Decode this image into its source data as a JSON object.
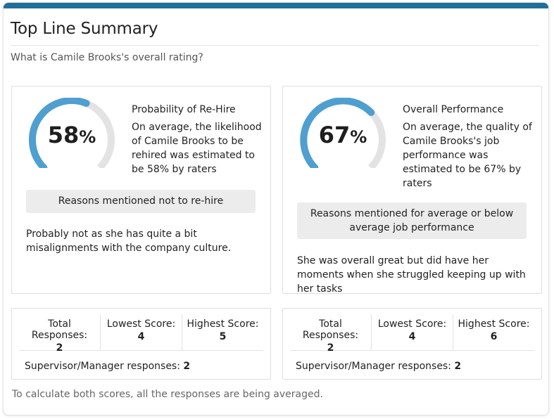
{
  "header": {
    "title": "Top Line Summary",
    "question": "What is Camile Brooks's overall rating?"
  },
  "colors": {
    "accent_bar": "#1f6f9a",
    "gauge_fill": "#4f9fd0",
    "gauge_track": "#e3e3e3"
  },
  "rehire": {
    "percent": 58,
    "value_number": "58",
    "value_unit": "%",
    "title": "Probability of Re-Hire",
    "description": "On average, the likelihood of Camile Brooks to be rehired was estimated to be 58% by raters",
    "reasons_heading": "Reasons mentioned not to re-hire",
    "reasons_text": "Probably not as she has quite a bit misalignments with the company culture.",
    "stats": {
      "total_label": "Total Responses:",
      "total_value": "2",
      "lowest_label": "Lowest Score:",
      "lowest_value": "4",
      "highest_label": "Highest Score:",
      "highest_value": "5",
      "supervisor_label": "Supervisor/Manager responses:",
      "supervisor_value": "2"
    }
  },
  "performance": {
    "percent": 67,
    "value_number": "67",
    "value_unit": "%",
    "title": "Overall Performance",
    "description": "On average, the quality of Camile Brooks's job performance was estimated to be 67% by raters",
    "reasons_heading": "Reasons mentioned for average or below average job performance",
    "reasons_text": "She was overall great but did have her moments when she struggled keeping up with her tasks",
    "stats": {
      "total_label": "Total Responses:",
      "total_value": "2",
      "lowest_label": "Lowest Score:",
      "lowest_value": "4",
      "highest_label": "Highest Score:",
      "highest_value": "6",
      "supervisor_label": "Supervisor/Manager responses:",
      "supervisor_value": "2"
    }
  },
  "footnote": "To calculate both scores, all the responses are being averaged."
}
